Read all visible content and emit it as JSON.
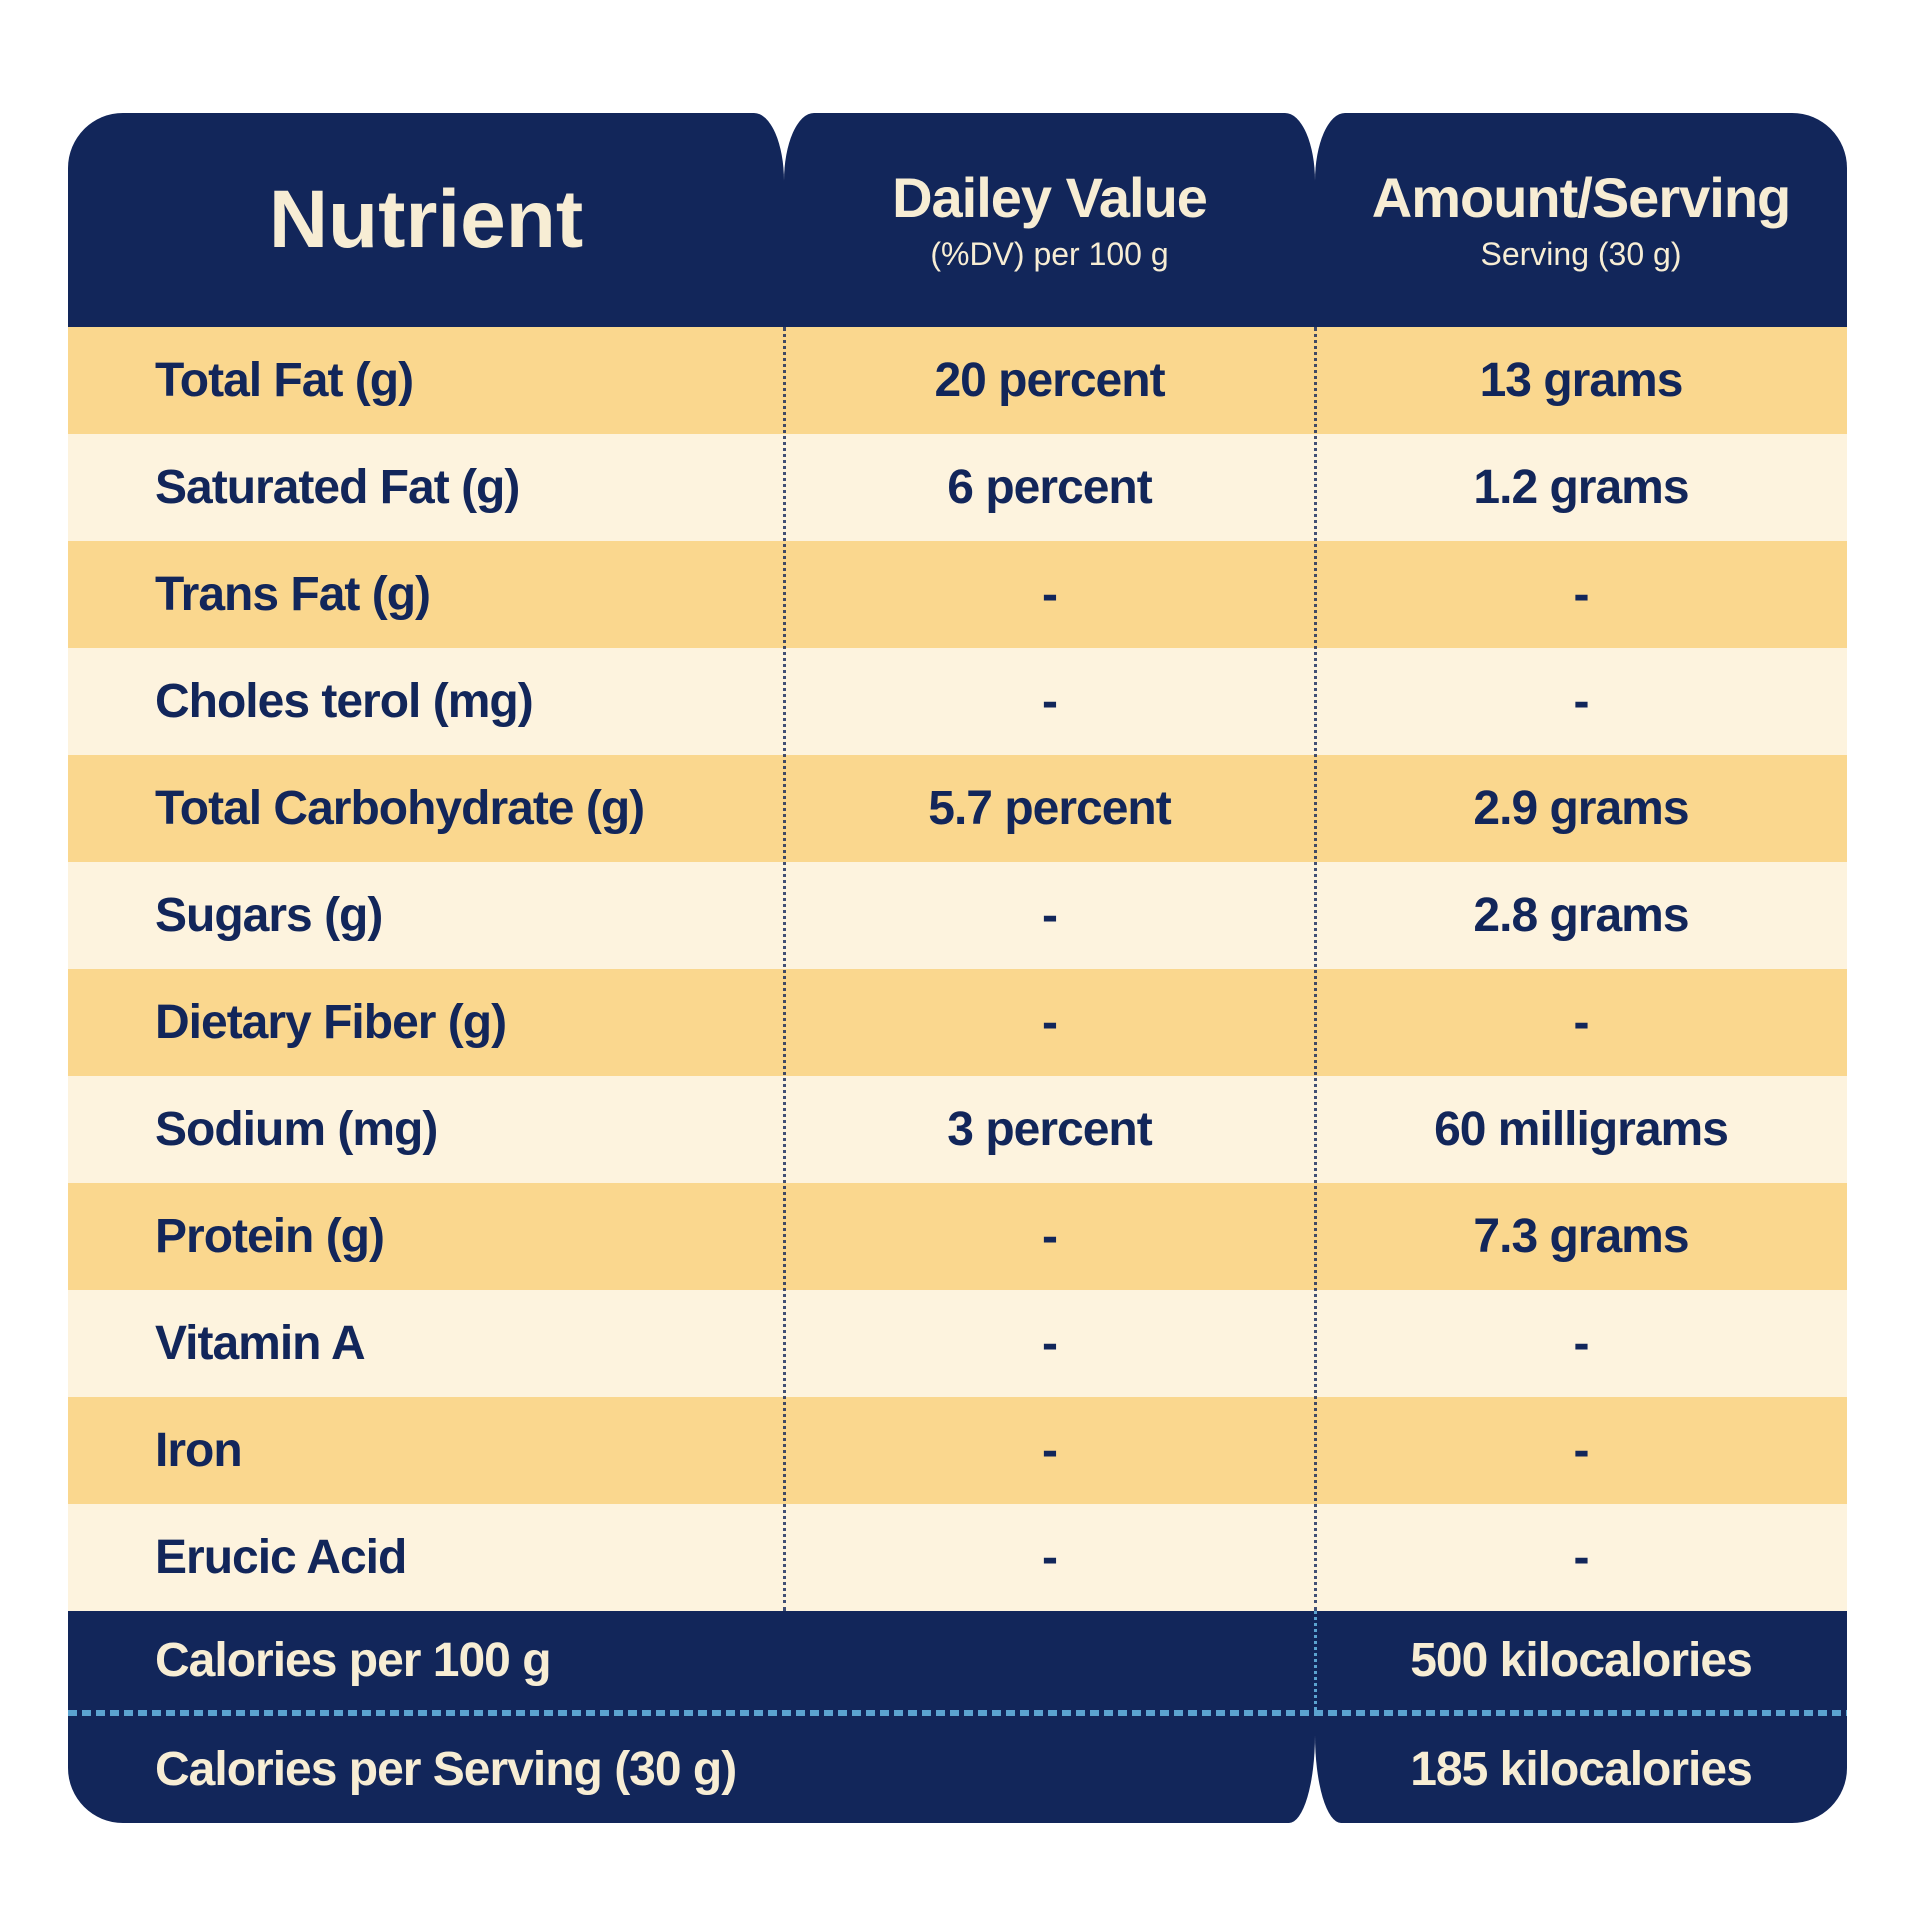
{
  "title": "Nutrition facts table",
  "colors": {
    "navy": "#12265A",
    "gold_row": "#FAD78E",
    "cream_row": "#FDF3DE",
    "header_text": "#F7EDD4",
    "accent_blue": "#5BA3D0",
    "page_bg": "#FFFFFF"
  },
  "header": {
    "nutrient": {
      "title": "Nutrient"
    },
    "daily_value": {
      "title": "Dailey Value",
      "subtitle": "(%DV) per 100 g"
    },
    "amount_serving": {
      "title": "Amount/Serving",
      "subtitle": "Serving (30 g)"
    }
  },
  "rows": [
    {
      "nutrient": "Total Fat (g)",
      "daily_value": "20 percent",
      "amount": "13 grams"
    },
    {
      "nutrient": "Saturated Fat (g)",
      "daily_value": "6 percent",
      "amount": "1.2 grams"
    },
    {
      "nutrient": "Trans Fat (g)",
      "daily_value": "-",
      "amount": "-"
    },
    {
      "nutrient": "Choles terol (mg)",
      "daily_value": "-",
      "amount": "-"
    },
    {
      "nutrient": "Total Carbohydrate (g)",
      "daily_value": "5.7 percent",
      "amount": "2.9 grams"
    },
    {
      "nutrient": "Sugars (g)",
      "daily_value": "-",
      "amount": "2.8 grams"
    },
    {
      "nutrient": "Dietary Fiber (g)",
      "daily_value": "-",
      "amount": "-"
    },
    {
      "nutrient": "Sodium (mg)",
      "daily_value": "3 percent",
      "amount": "60 milligrams"
    },
    {
      "nutrient": "Protein (g)",
      "daily_value": "-",
      "amount": "7.3 grams"
    },
    {
      "nutrient": "Vitamin A",
      "daily_value": "-",
      "amount": "-"
    },
    {
      "nutrient": "Iron",
      "daily_value": "-",
      "amount": "-"
    },
    {
      "nutrient": "Erucic Acid",
      "daily_value": "-",
      "amount": "-"
    }
  ],
  "footer": {
    "rows": [
      {
        "label": "Calories per 100 g",
        "value": "500 kilocalories"
      },
      {
        "label": "Calories per Serving (30 g)",
        "value": "185 kilocalories"
      }
    ]
  },
  "chart_data": {
    "type": "table",
    "title": "Nutrient — Dailey Value — Amount/Serving",
    "columns": [
      "Nutrient",
      "Dailey Value (%DV) per 100 g",
      "Amount/Serving — Serving (30 g)"
    ],
    "rows": [
      [
        "Total Fat (g)",
        "20 percent",
        "13 grams"
      ],
      [
        "Saturated Fat (g)",
        "6 percent",
        "1.2 grams"
      ],
      [
        "Trans Fat (g)",
        "-",
        "-"
      ],
      [
        "Choles terol (mg)",
        "-",
        "-"
      ],
      [
        "Total Carbohydrate (g)",
        "5.7 percent",
        "2.9 grams"
      ],
      [
        "Sugars (g)",
        "-",
        "2.8 grams"
      ],
      [
        "Dietary Fiber (g)",
        "-",
        "-"
      ],
      [
        "Sodium (mg)",
        "3 percent",
        "60 milligrams"
      ],
      [
        "Protein (g)",
        "-",
        "7.3 grams"
      ],
      [
        "Vitamin A",
        "-",
        "-"
      ],
      [
        "Iron",
        "-",
        "-"
      ],
      [
        "Erucic Acid",
        "-",
        "-"
      ]
    ],
    "footer_rows": [
      [
        "Calories per 100 g",
        "",
        "500 kilocalories"
      ],
      [
        "Calories per Serving (30 g)",
        "",
        "185 kilocalories"
      ]
    ],
    "layout": {
      "row_striping": [
        "gold",
        "cream"
      ],
      "column_dividers": "dotted",
      "grid": false
    }
  }
}
